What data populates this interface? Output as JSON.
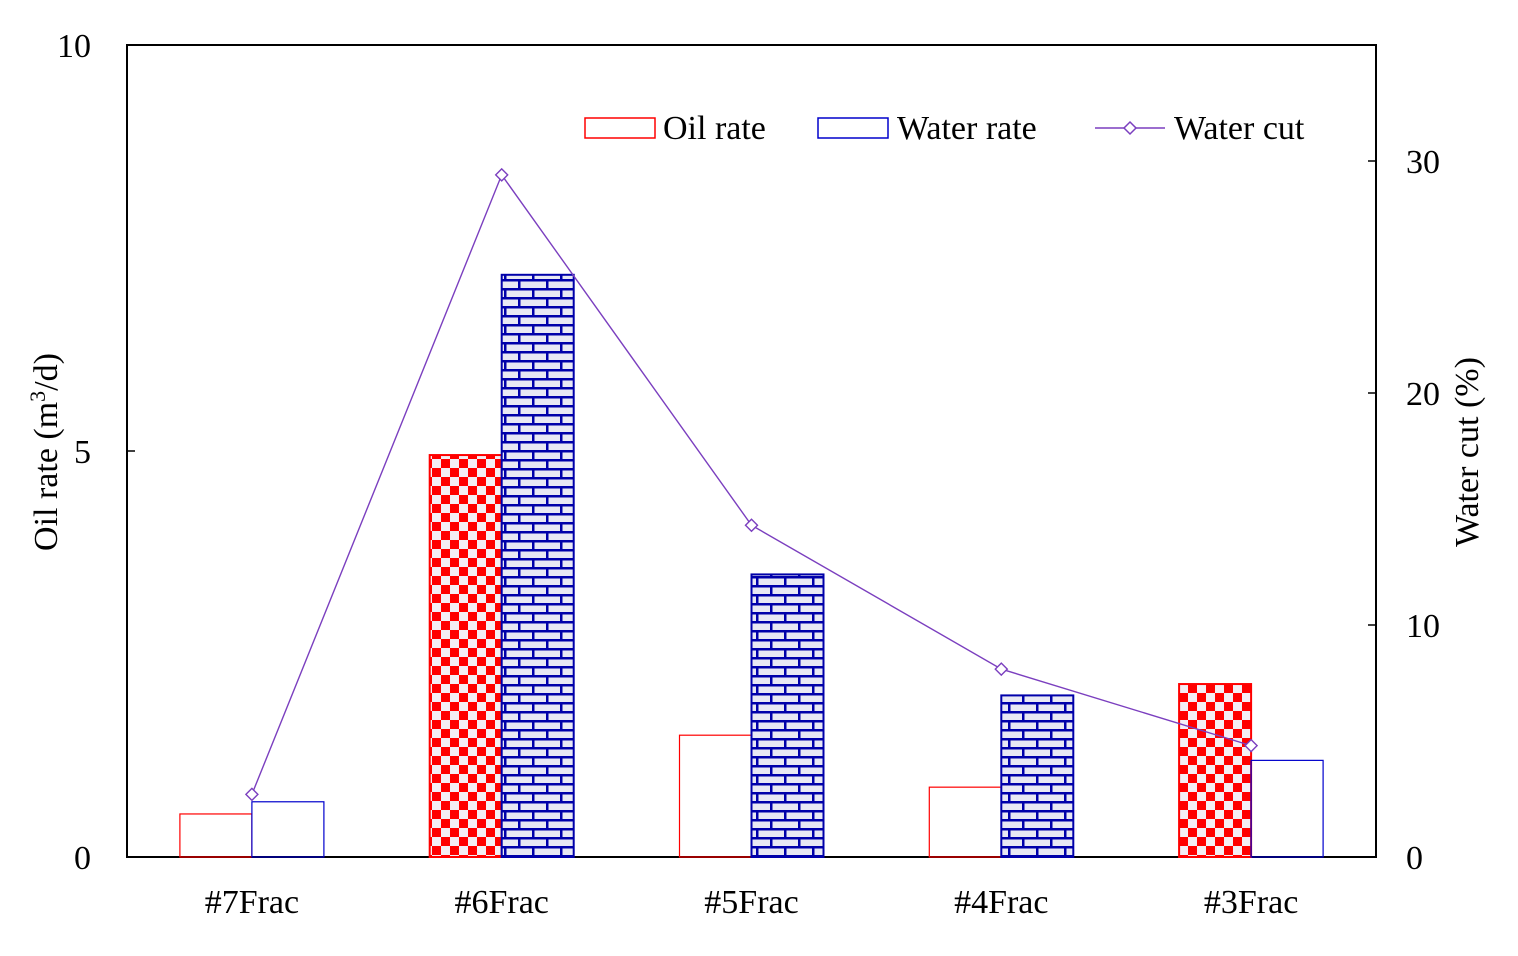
{
  "chart_data": {
    "type": "bar",
    "categories": [
      "#7Frac",
      "#6Frac",
      "#5Frac",
      "#4Frac",
      "#3Frac"
    ],
    "series": [
      {
        "name": "Oil rate",
        "axis": "left",
        "values": [
          0.53,
          4.95,
          1.5,
          0.86,
          2.13
        ],
        "filled": [
          false,
          true,
          false,
          false,
          true
        ],
        "color": "#ff0000",
        "pattern": "checker"
      },
      {
        "name": "Water rate",
        "axis": "left",
        "values": [
          0.68,
          7.17,
          3.48,
          1.99,
          1.19
        ],
        "filled": [
          false,
          true,
          true,
          true,
          false
        ],
        "color": "#0000cc",
        "pattern": "brick"
      },
      {
        "name": "Water cut",
        "axis": "right",
        "type": "line",
        "values": [
          2.7,
          29.4,
          14.3,
          8.1,
          4.8
        ],
        "color": "#7b3fbf",
        "marker": "diamond"
      }
    ],
    "y_left": {
      "label_main": "Oil rate (m",
      "label_sup": "3",
      "label_tail": "/d)",
      "lim": [
        0,
        10
      ],
      "ticks": [
        "0",
        "5",
        "10"
      ],
      "tick_values": [
        0,
        5,
        10
      ]
    },
    "y_right": {
      "label": "Water cut (%)",
      "lim": [
        0,
        35
      ],
      "ticks": [
        "0",
        "10",
        "20",
        "30"
      ],
      "tick_values": [
        0,
        10,
        20,
        30
      ]
    },
    "legend": {
      "position": "top-right",
      "entries": [
        "Oil rate",
        "Water rate",
        "Water cut"
      ]
    },
    "grid": false
  }
}
